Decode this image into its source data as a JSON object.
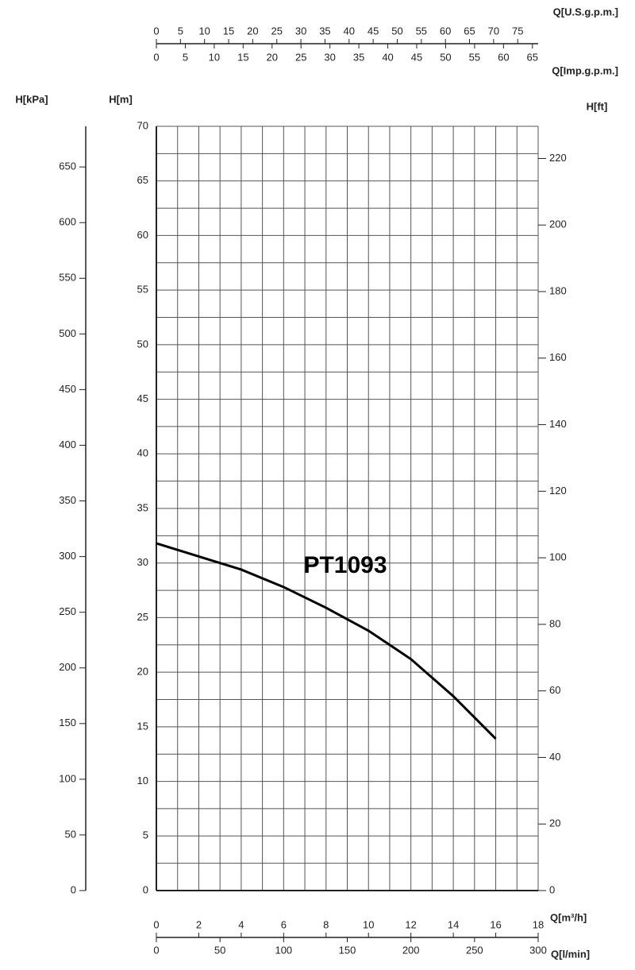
{
  "chart_data": {
    "type": "line",
    "xlabel": "Q[m³/h]",
    "ylabel": "H[m]",
    "x": [
      0,
      2,
      4,
      6,
      8,
      10,
      12,
      14,
      16
    ],
    "xlim": [
      0,
      18
    ],
    "xticks": [
      0,
      2,
      4,
      6,
      8,
      10,
      12,
      14,
      16,
      18
    ],
    "ylim": [
      0,
      70
    ],
    "yticks": [
      0,
      5,
      10,
      15,
      20,
      25,
      30,
      35,
      40,
      45,
      50,
      55,
      60,
      65,
      70
    ],
    "grid": true,
    "series": [
      {
        "name": "PT1093",
        "color": "#000000",
        "values": [
          31.8,
          30.6,
          29.4,
          27.8,
          25.9,
          23.8,
          21.2,
          17.8,
          13.9
        ]
      }
    ],
    "secondary_axes": [
      {
        "side": "left",
        "label": "H[kPa]",
        "lim": [
          0,
          686.5
        ],
        "ticks": [
          0,
          50,
          100,
          150,
          200,
          250,
          300,
          350,
          400,
          450,
          500,
          550,
          600,
          650
        ]
      },
      {
        "side": "right",
        "label": "H[ft]",
        "lim": [
          0,
          229.66
        ],
        "ticks": [
          0,
          20,
          40,
          60,
          80,
          100,
          120,
          140,
          160,
          180,
          200,
          220
        ]
      },
      {
        "side": "bottom",
        "label": "Q[l/min]",
        "lim": [
          0,
          300
        ],
        "ticks": [
          0,
          50,
          100,
          150,
          200,
          250,
          300
        ]
      },
      {
        "side": "top",
        "label": "Q[U.S.g.p.m.]",
        "lim": [
          0,
          79.25
        ],
        "ticks": [
          0,
          5,
          10,
          15,
          20,
          25,
          30,
          35,
          40,
          45,
          50,
          55,
          60,
          65,
          70,
          75
        ]
      },
      {
        "side": "top",
        "label": "Q[Imp.g.p.m.]",
        "lim": [
          0,
          65.99
        ],
        "ticks": [
          0,
          5,
          10,
          15,
          20,
          25,
          30,
          35,
          40,
          45,
          50,
          55,
          60,
          65
        ]
      }
    ]
  }
}
